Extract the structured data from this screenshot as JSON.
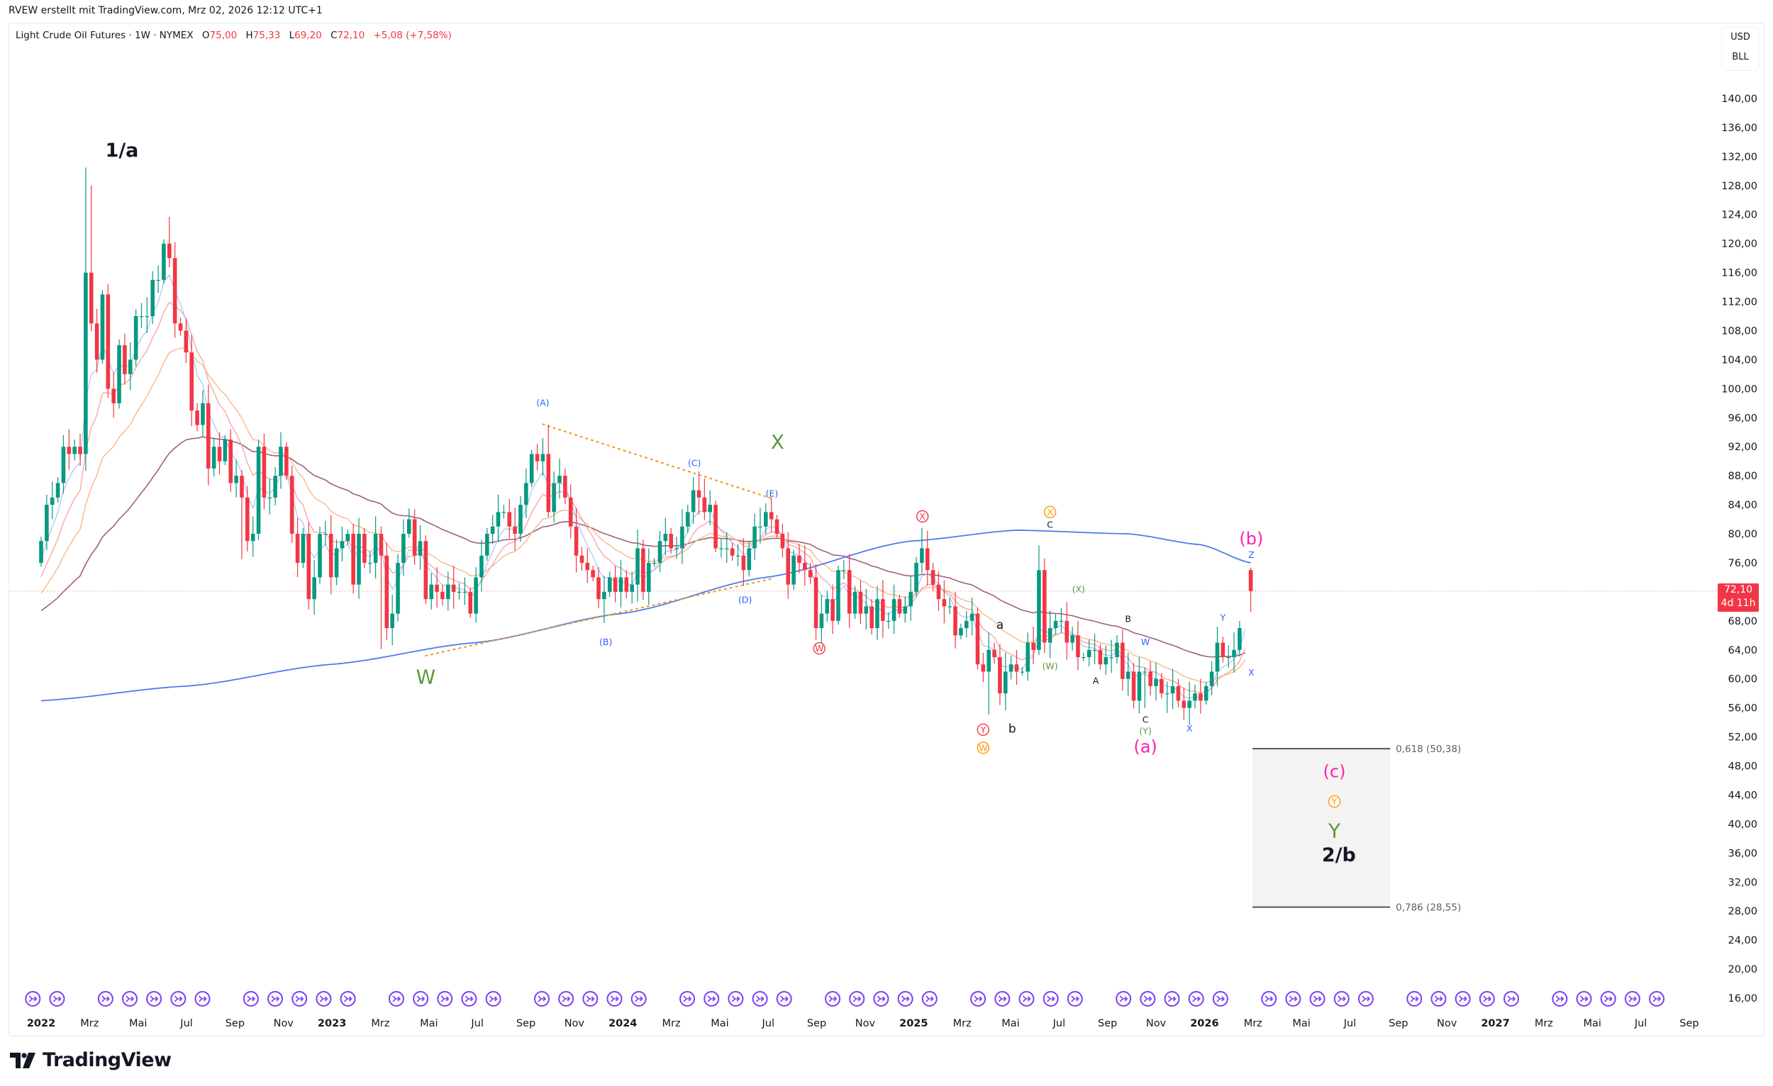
{
  "header": {
    "created_by": "RVEW erstellt mit TradingView.com, Mrz 02, 2026 12:12 UTC+1"
  },
  "legend": {
    "title": "Light Crude Oil Futures · 1W · NYMEX",
    "o_label": "O",
    "o_value": "75,00",
    "h_label": "H",
    "h_value": "75,33",
    "l_label": "L",
    "l_value": "69,20",
    "c_label": "C",
    "c_value": "72,10",
    "change": "+5,08 (+7,58%)"
  },
  "price_axis": {
    "currency": "USD",
    "unit": "BLL",
    "last_price": "72,10",
    "countdown": "4d 11h"
  },
  "branding": {
    "name": "TradingView"
  },
  "colors": {
    "up": "#089981",
    "down": "#f23645",
    "ema_fast": "#a9c1f5",
    "ema_mid": "#f7a1a0",
    "ema_slow": "#f8b98a",
    "ma_50": "#a0607a",
    "ma_200": "#4d7cf0",
    "event": "#7b3ff2"
  },
  "chart_data": {
    "type": "candlestick",
    "title": "Light Crude Oil Futures · 1W · NYMEX",
    "x_unit": "weeks since 2022-01-03",
    "ylim": [
      16,
      140
    ],
    "y_ticks": [
      16,
      20,
      24,
      28,
      32,
      36,
      40,
      44,
      48,
      52,
      56,
      60,
      64,
      68,
      72,
      76,
      80,
      84,
      88,
      92,
      96,
      100,
      104,
      108,
      112,
      116,
      120,
      124,
      128,
      132,
      136,
      140
    ],
    "x_tick_labels": [
      "2022",
      "Mrz",
      "Mai",
      "Jul",
      "Sep",
      "Nov",
      "2023",
      "Mrz",
      "Mai",
      "Jul",
      "Sep",
      "Nov",
      "2024",
      "Mrz",
      "Mai",
      "Jul",
      "Sep",
      "Nov",
      "2025",
      "Mrz",
      "Mai",
      "Jul",
      "Sep",
      "Nov",
      "2026",
      "Mrz",
      "Mai",
      "Jul",
      "Sep",
      "Nov",
      "2027",
      "Mrz",
      "Mai",
      "Jul",
      "Sep"
    ],
    "first_open": 76,
    "closes": [
      79,
      84,
      85,
      87,
      92,
      91,
      92,
      91,
      116,
      109,
      104,
      113,
      100,
      98,
      106,
      102,
      104,
      110,
      110,
      110,
      115,
      115,
      120,
      118,
      109,
      108,
      105,
      97,
      95,
      98,
      89,
      92,
      90,
      93,
      87,
      88,
      85,
      79,
      80,
      92,
      85,
      85,
      88,
      92,
      88,
      80,
      76,
      80,
      71,
      74,
      80,
      80,
      74,
      78,
      79,
      80,
      73,
      80,
      76,
      76,
      80,
      77,
      67,
      69,
      76,
      80,
      82,
      77,
      79,
      71,
      73,
      72,
      71,
      73,
      72,
      72,
      72,
      69,
      74,
      77,
      80,
      81,
      83,
      83,
      81,
      80,
      84,
      87,
      91,
      90,
      91,
      83,
      87,
      88,
      85,
      81,
      77,
      76,
      75,
      74,
      71,
      72,
      74,
      72,
      74,
      72,
      73,
      78,
      72,
      76,
      76,
      79,
      80,
      78,
      78,
      81,
      83,
      86,
      85,
      83,
      84,
      78,
      78,
      78,
      77,
      77,
      75,
      78,
      81,
      81,
      83,
      82,
      80,
      78,
      73,
      77,
      76,
      75,
      74,
      67,
      69,
      71,
      68,
      75,
      75,
      69,
      72,
      69,
      70,
      67,
      71,
      68,
      68,
      71,
      69,
      70,
      72,
      76,
      78,
      75,
      73,
      71,
      70,
      70,
      66,
      67,
      68,
      69,
      62,
      61,
      64,
      63,
      58,
      61,
      62,
      61,
      61,
      65,
      64,
      75,
      65,
      67,
      68,
      68,
      65,
      66,
      63,
      63,
      64,
      64,
      62,
      63,
      63,
      65,
      60,
      61,
      57,
      61,
      61,
      59,
      60,
      58,
      58,
      59,
      57,
      56,
      57,
      58,
      57,
      59,
      61,
      65,
      63,
      63,
      64,
      67
    ],
    "wick_overrides": [
      {
        "week": 8,
        "high": 130.5
      },
      {
        "week": 9,
        "high": 128
      },
      {
        "week": 23,
        "high": 123.7
      },
      {
        "week": 36,
        "low": 76.5
      },
      {
        "week": 61,
        "low": 64.1
      },
      {
        "week": 66,
        "high": 83.5
      },
      {
        "week": 91,
        "high": 95.0
      },
      {
        "week": 101,
        "low": 67.7
      },
      {
        "week": 119,
        "high": 87.6
      },
      {
        "week": 158,
        "high": 80.8
      },
      {
        "week": 170,
        "low": 55.1
      },
      {
        "week": 179,
        "high": 78.4
      },
      {
        "week": 198,
        "low": 56.0
      },
      {
        "week": 202,
        "low": 55.3
      }
    ],
    "last_bar": {
      "week": 217,
      "open": 75.0,
      "high": 75.33,
      "low": 69.2,
      "close": 72.1
    },
    "ma_200_points": [
      [
        0,
        57
      ],
      [
        26,
        59
      ],
      [
        52,
        62
      ],
      [
        78,
        65
      ],
      [
        104,
        69
      ],
      [
        130,
        74
      ],
      [
        156,
        79
      ],
      [
        175,
        80.5
      ],
      [
        195,
        80
      ],
      [
        208,
        78.5
      ],
      [
        217,
        76
      ]
    ],
    "triangle_lines": [
      {
        "from": [
          90,
          95.1
        ],
        "to": [
          131,
          84.9
        ]
      },
      {
        "from": [
          69,
          63.2
        ],
        "to": [
          131,
          73.8
        ]
      }
    ],
    "fib_zone": {
      "week_start": 217.3,
      "week_end": 242,
      "levels": [
        {
          "ratio": "0,618",
          "price": 50.38,
          "label": "0,618 (50,38)"
        },
        {
          "ratio": "0,786",
          "price": 28.55,
          "label": "0,786 (28,55)"
        }
      ]
    },
    "wave_labels": [
      {
        "text": "1/a",
        "week": 14.5,
        "price": 132.7,
        "color": "#131722",
        "kind": "major"
      },
      {
        "text": "W",
        "week": 69,
        "price": 60.1,
        "color": "#5a9a3e",
        "kind": "big"
      },
      {
        "text": "(A)",
        "week": 90,
        "price": 98.0,
        "color": "#2962ff",
        "kind": "tiny"
      },
      {
        "text": "(B)",
        "week": 101.3,
        "price": 65.0,
        "color": "#2962ff",
        "kind": "tiny"
      },
      {
        "text": "(C)",
        "week": 117.2,
        "price": 89.7,
        "color": "#2962ff",
        "kind": "tiny"
      },
      {
        "text": "(D)",
        "week": 126.3,
        "price": 70.8,
        "color": "#2962ff",
        "kind": "tiny"
      },
      {
        "text": "(E)",
        "week": 131.1,
        "price": 85.5,
        "color": "#2962ff",
        "kind": "tiny"
      },
      {
        "text": "X",
        "week": 132.1,
        "price": 92.5,
        "color": "#5a9a3e",
        "kind": "big"
      },
      {
        "text": "X",
        "week": 158.1,
        "price": 82.4,
        "color": "#f23645",
        "kind": "circle"
      },
      {
        "text": "W",
        "week": 139.6,
        "price": 64.2,
        "color": "#f23645",
        "kind": "circle"
      },
      {
        "text": "Y",
        "week": 169,
        "price": 53.0,
        "color": "#f23645",
        "kind": "circle"
      },
      {
        "text": "W",
        "week": 169,
        "price": 50.5,
        "color": "#ff9800",
        "kind": "circle"
      },
      {
        "text": "a",
        "week": 172,
        "price": 67.4,
        "color": "#131722",
        "kind": "small"
      },
      {
        "text": "b",
        "week": 174.2,
        "price": 53.1,
        "color": "#131722",
        "kind": "small"
      },
      {
        "text": "X",
        "week": 181,
        "price": 83.0,
        "color": "#ff9800",
        "kind": "circle"
      },
      {
        "text": "C",
        "week": 181,
        "price": 81.2,
        "color": "#131722",
        "kind": "tiny"
      },
      {
        "text": "(X)",
        "week": 186.1,
        "price": 72.3,
        "color": "#5a9a3e",
        "kind": "tiny"
      },
      {
        "text": "(W)",
        "week": 181,
        "price": 61.7,
        "color": "#5a9a3e",
        "kind": "tiny"
      },
      {
        "text": "B",
        "week": 195,
        "price": 68.2,
        "color": "#131722",
        "kind": "tiny"
      },
      {
        "text": "A",
        "week": 189.2,
        "price": 59.7,
        "color": "#131722",
        "kind": "tiny"
      },
      {
        "text": "W",
        "week": 198.1,
        "price": 65.0,
        "color": "#2962ff",
        "kind": "tiny"
      },
      {
        "text": "C",
        "week": 198.1,
        "price": 54.3,
        "color": "#131722",
        "kind": "tiny"
      },
      {
        "text": "(Y)",
        "week": 198.1,
        "price": 53.2,
        "color": "#5a9a3e",
        "kind": "tiny"
      },
      {
        "text": "(a)",
        "week": 198.1,
        "price": 51.2,
        "color": "#ff1fb4",
        "kind": "mid"
      },
      {
        "text": "X",
        "week": 206,
        "price": 53.1,
        "color": "#2962ff",
        "kind": "tiny"
      },
      {
        "text": "Y",
        "week": 212,
        "price": 68.4,
        "color": "#2962ff",
        "kind": "tiny"
      },
      {
        "text": "X",
        "week": 217.1,
        "price": 60.8,
        "color": "#2962ff",
        "kind": "tiny"
      },
      {
        "text": "Z",
        "week": 217.1,
        "price": 77.0,
        "color": "#2962ff",
        "kind": "tiny"
      },
      {
        "text": "(b)",
        "week": 217.1,
        "price": 79.2,
        "color": "#ff1fb4",
        "kind": "mid"
      },
      {
        "text": "(c)",
        "week": 232,
        "price": 47.1,
        "color": "#ff1fb4",
        "kind": "mid"
      },
      {
        "text": "Y",
        "week": 232,
        "price": 43.1,
        "color": "#ff9800",
        "kind": "circle"
      },
      {
        "text": "Y",
        "week": 232,
        "price": 38.9,
        "color": "#5a9a3e",
        "kind": "big"
      },
      {
        "text": "2/b",
        "week": 232.8,
        "price": 35.6,
        "color": "#131722",
        "kind": "major"
      }
    ],
    "event_icon": "contract-rollover-icon"
  }
}
